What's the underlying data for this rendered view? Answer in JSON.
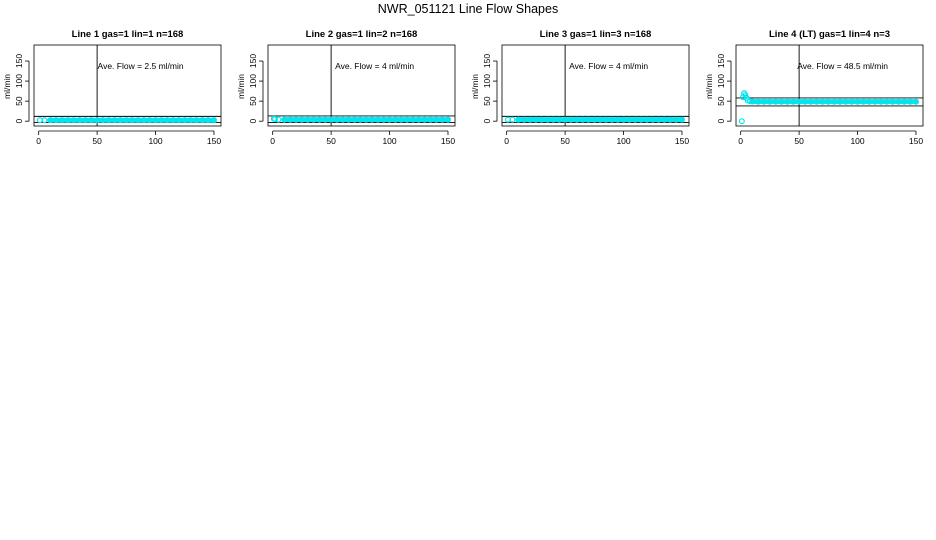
{
  "page": {
    "title": "NWR_051121  Line Flow Shapes"
  },
  "chart_data": [
    {
      "type": "scatter",
      "title": "Line 1 gas=1 lin=1 n=168",
      "xlabel": "",
      "ylabel": "ml/min",
      "xticks": [
        0,
        50,
        100,
        150
      ],
      "yticks": [
        0,
        50,
        100,
        150
      ],
      "xlim": [
        -4,
        156
      ],
      "ylim": [
        -12,
        190
      ],
      "annotation": "Ave. Flow =  2.5  ml/min",
      "vline": 50,
      "hlines": [
        -3,
        12
      ],
      "series": [
        {
          "color": "#00e5ee",
          "points": [
            [
              1,
              2.5
            ],
            [
              5,
              2.5
            ],
            [
              10,
              2.5
            ],
            [
              15,
              2.5
            ],
            [
              20,
              2.5
            ],
            [
              25,
              2.5
            ],
            [
              30,
              2.5
            ],
            [
              35,
              2.5
            ],
            [
              40,
              2.5
            ],
            [
              45,
              2.5
            ],
            [
              50,
              2.5
            ],
            [
              55,
              2.5
            ],
            [
              60,
              2.5
            ],
            [
              65,
              2.5
            ],
            [
              70,
              2.5
            ],
            [
              75,
              2.5
            ],
            [
              80,
              2.5
            ],
            [
              85,
              2.5
            ],
            [
              90,
              2.5
            ],
            [
              95,
              2.5
            ],
            [
              100,
              2.5
            ],
            [
              105,
              2.5
            ],
            [
              110,
              2.5
            ],
            [
              115,
              2.5
            ],
            [
              120,
              2.5
            ],
            [
              125,
              2.5
            ],
            [
              130,
              2.5
            ],
            [
              135,
              2.5
            ],
            [
              140,
              2.5
            ],
            [
              145,
              2.5
            ],
            [
              150,
              2.5
            ]
          ]
        }
      ]
    },
    {
      "type": "scatter",
      "title": "Line 2 gas=1 lin=2 n=168",
      "xlabel": "",
      "ylabel": "ml/min",
      "xticks": [
        0,
        50,
        100,
        150
      ],
      "yticks": [
        0,
        50,
        100,
        150
      ],
      "xlim": [
        -4,
        156
      ],
      "ylim": [
        -12,
        190
      ],
      "annotation": "Ave. Flow =  4  ml/min",
      "vline": 50,
      "hlines": [
        -3,
        13
      ],
      "series": [
        {
          "color": "#00e5ee",
          "points": [
            [
              1,
              6
            ],
            [
              2,
              5
            ],
            [
              5,
              4
            ],
            [
              10,
              4
            ],
            [
              15,
              4
            ],
            [
              20,
              4
            ],
            [
              25,
              4
            ],
            [
              30,
              4
            ],
            [
              35,
              4
            ],
            [
              40,
              4
            ],
            [
              45,
              4
            ],
            [
              50,
              4
            ],
            [
              55,
              4
            ],
            [
              60,
              4
            ],
            [
              65,
              4
            ],
            [
              70,
              4
            ],
            [
              75,
              4
            ],
            [
              80,
              4
            ],
            [
              85,
              4
            ],
            [
              90,
              4
            ],
            [
              95,
              4
            ],
            [
              100,
              4
            ],
            [
              105,
              4
            ],
            [
              110,
              4
            ],
            [
              115,
              4
            ],
            [
              120,
              4
            ],
            [
              125,
              4
            ],
            [
              130,
              4
            ],
            [
              135,
              4
            ],
            [
              140,
              4
            ],
            [
              145,
              4
            ],
            [
              150,
              4
            ]
          ]
        }
      ]
    },
    {
      "type": "scatter",
      "title": "Line 3 gas=1 lin=3 n=168",
      "xlabel": "",
      "ylabel": "ml/min",
      "xticks": [
        0,
        50,
        100,
        150
      ],
      "yticks": [
        0,
        50,
        100,
        150
      ],
      "xlim": [
        -4,
        156
      ],
      "ylim": [
        -12,
        190
      ],
      "annotation": "Ave. Flow =  4  ml/min",
      "vline": 50,
      "hlines": [
        -3,
        12
      ],
      "series": [
        {
          "color": "#00e5ee",
          "points": [
            [
              1,
              4
            ],
            [
              5,
              4
            ],
            [
              10,
              4
            ],
            [
              15,
              4
            ],
            [
              20,
              4
            ],
            [
              25,
              4
            ],
            [
              30,
              4
            ],
            [
              35,
              4
            ],
            [
              40,
              4
            ],
            [
              45,
              4
            ],
            [
              50,
              4
            ],
            [
              55,
              4
            ],
            [
              60,
              4
            ],
            [
              65,
              4
            ],
            [
              70,
              4
            ],
            [
              75,
              4
            ],
            [
              80,
              4
            ],
            [
              85,
              4
            ],
            [
              90,
              4
            ],
            [
              95,
              4
            ],
            [
              100,
              4
            ],
            [
              105,
              4
            ],
            [
              110,
              4
            ],
            [
              115,
              4
            ],
            [
              120,
              4
            ],
            [
              125,
              4
            ],
            [
              130,
              4
            ],
            [
              135,
              4
            ],
            [
              140,
              4
            ],
            [
              145,
              4
            ],
            [
              150,
              4
            ]
          ]
        }
      ]
    },
    {
      "type": "scatter",
      "title": "Line 4 (LT) gas=1 lin=4 n=3",
      "xlabel": "",
      "ylabel": "ml/min",
      "xticks": [
        0,
        50,
        100,
        150
      ],
      "yticks": [
        0,
        50,
        100,
        150
      ],
      "xlim": [
        -4,
        156
      ],
      "ylim": [
        -12,
        190
      ],
      "annotation": "Ave. Flow =  48.5  ml/min",
      "vline": 50,
      "hlines": [
        38,
        58
      ],
      "series": [
        {
          "color": "#00e5ee",
          "points": [
            [
              1,
              0
            ],
            [
              2,
              60
            ],
            [
              3,
              70
            ],
            [
              4,
              65
            ],
            [
              5,
              58
            ],
            [
              6,
              52
            ],
            [
              8,
              50
            ],
            [
              10,
              49
            ],
            [
              15,
              48.5
            ],
            [
              20,
              48.5
            ],
            [
              25,
              48.5
            ],
            [
              30,
              48.5
            ],
            [
              35,
              48.5
            ],
            [
              40,
              48.5
            ],
            [
              45,
              48.5
            ],
            [
              50,
              48.5
            ],
            [
              55,
              48.5
            ],
            [
              60,
              48.5
            ],
            [
              65,
              48.5
            ],
            [
              70,
              48.5
            ],
            [
              75,
              48.5
            ],
            [
              80,
              48.5
            ],
            [
              85,
              48.5
            ],
            [
              90,
              48.5
            ],
            [
              95,
              48.5
            ],
            [
              100,
              48.5
            ],
            [
              105,
              48.5
            ],
            [
              110,
              48.5
            ],
            [
              115,
              48.5
            ],
            [
              120,
              48.5
            ],
            [
              125,
              48.5
            ],
            [
              130,
              48.5
            ],
            [
              135,
              48.5
            ],
            [
              140,
              48.5
            ],
            [
              145,
              48.5
            ],
            [
              150,
              48.5
            ]
          ]
        }
      ]
    }
  ]
}
